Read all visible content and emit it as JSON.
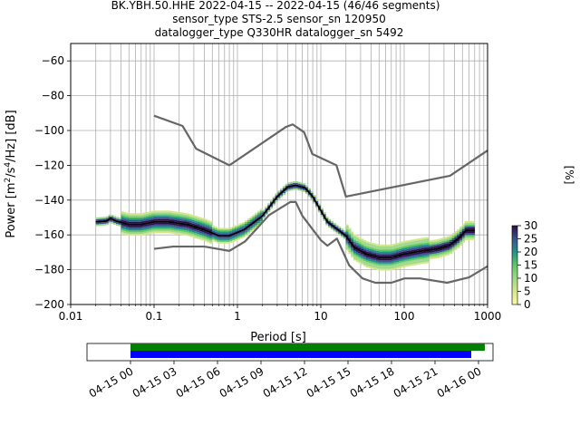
{
  "title_lines": [
    "BK.YBH.50.HHE   2022-04-15 -- 2022-04-15  (46/46 segments)",
    "sensor_type STS-2.5 sensor_sn 120950",
    "datalogger_type Q330HR datalogger_sn 5492"
  ],
  "chart_data": [
    {
      "type": "heatmap",
      "title": "BK.YBH.50.HHE   2022-04-15 -- 2022-04-15  (46/46 segments)",
      "xlabel": "Period [s]",
      "ylabel": "Power [m²/s⁴/Hz] [dB]",
      "xscale": "log",
      "xlim": [
        0.01,
        1000
      ],
      "ylim": [
        -200,
        -50
      ],
      "xticks": [
        0.01,
        0.1,
        1,
        10,
        100,
        1000
      ],
      "xtick_labels": [
        "0.01",
        "0.1",
        "1",
        "10",
        "100",
        "1000"
      ],
      "yticks": [
        -200,
        -180,
        -160,
        -140,
        -120,
        -100,
        -80,
        -60
      ],
      "ytick_labels": [
        "−200",
        "−180",
        "−160",
        "−140",
        "−120",
        "−100",
        "−80",
        "−60"
      ],
      "grid": true,
      "colorbar": {
        "label": "[%]",
        "ticks": [
          0,
          5,
          10,
          15,
          20,
          25,
          30
        ],
        "range": [
          0,
          30
        ],
        "colors": [
          "#fde725",
          "#d6e68a",
          "#9ed98a",
          "#5ec962",
          "#21918c",
          "#3b528b",
          "#2c0f4a"
        ]
      },
      "series": [
        {
          "name": "",
          "role": "new-high-noise-model",
          "color": "#666666",
          "points": [
            [
              0.1,
              -91.5
            ],
            [
              0.22,
              -97.4
            ],
            [
              0.32,
              -110.5
            ],
            [
              0.8,
              -120
            ],
            [
              3.8,
              -98
            ],
            [
              4.6,
              -96.5
            ],
            [
              6.3,
              -101
            ],
            [
              7.9,
              -113.5
            ],
            [
              15.4,
              -120
            ],
            [
              20,
              -138
            ],
            [
              354.8,
              -126
            ],
            [
              1000,
              -111.5
            ]
          ]
        },
        {
          "name": "",
          "role": "new-low-noise-model",
          "color": "#666666",
          "points": [
            [
              0.1,
              -168
            ],
            [
              0.17,
              -166.7
            ],
            [
              0.4,
              -166.7
            ],
            [
              0.8,
              -169.2
            ],
            [
              1.24,
              -163.7
            ],
            [
              2.4,
              -148.6
            ],
            [
              4.3,
              -141.1
            ],
            [
              5.0,
              -141.1
            ],
            [
              6.0,
              -149
            ],
            [
              10,
              -163
            ],
            [
              12,
              -166.2
            ],
            [
              15.6,
              -162.1
            ],
            [
              21.9,
              -177.5
            ],
            [
              31.6,
              -185
            ],
            [
              45,
              -187.5
            ],
            [
              70,
              -187.5
            ],
            [
              101,
              -185
            ],
            [
              154,
              -185
            ],
            [
              328,
              -187.5
            ],
            [
              600,
              -184.4
            ],
            [
              1000,
              -178
            ]
          ]
        },
        {
          "name": "",
          "role": "mean-psd",
          "color": "#000000",
          "points": [
            [
              0.02,
              -152.5
            ],
            [
              0.027,
              -152
            ],
            [
              0.03,
              -150.5
            ],
            [
              0.035,
              -152
            ],
            [
              0.05,
              -154
            ],
            [
              0.07,
              -154
            ],
            [
              0.1,
              -152.5
            ],
            [
              0.15,
              -152.5
            ],
            [
              0.25,
              -154
            ],
            [
              0.4,
              -157
            ],
            [
              0.6,
              -160.5
            ],
            [
              0.8,
              -160.5
            ],
            [
              1.2,
              -157
            ],
            [
              2,
              -149
            ],
            [
              3,
              -138
            ],
            [
              4,
              -132.5
            ],
            [
              5,
              -131.5
            ],
            [
              6.5,
              -133
            ],
            [
              8,
              -138
            ],
            [
              10,
              -146
            ],
            [
              12,
              -152.5
            ],
            [
              15,
              -156
            ],
            [
              20,
              -160.5
            ],
            [
              25,
              -167
            ],
            [
              35,
              -171
            ],
            [
              50,
              -173
            ],
            [
              70,
              -173
            ],
            [
              100,
              -171
            ],
            [
              150,
              -169.5
            ],
            [
              250,
              -168
            ],
            [
              350,
              -166
            ],
            [
              450,
              -162
            ],
            [
              550,
              -157.5
            ],
            [
              700,
              -157.5
            ]
          ]
        }
      ]
    },
    {
      "type": "timeline",
      "xlim": [
        "2022-04-14 21:00",
        "2022-04-16 01:00"
      ],
      "xtick_labels": [
        "04-15 00",
        "04-15 03",
        "04-15 06",
        "04-15 09",
        "04-15 12",
        "04-15 15",
        "04-15 18",
        "04-15 21",
        "04-16 00"
      ],
      "bars": [
        {
          "role": "data-coverage",
          "color": "#008000",
          "start": "2022-04-15 00:00",
          "end": "2022-04-16 00:26"
        },
        {
          "role": "psd-coverage",
          "color": "#0000ff",
          "start": "2022-04-15 00:00",
          "end": "2022-04-15 23:30"
        }
      ]
    }
  ]
}
